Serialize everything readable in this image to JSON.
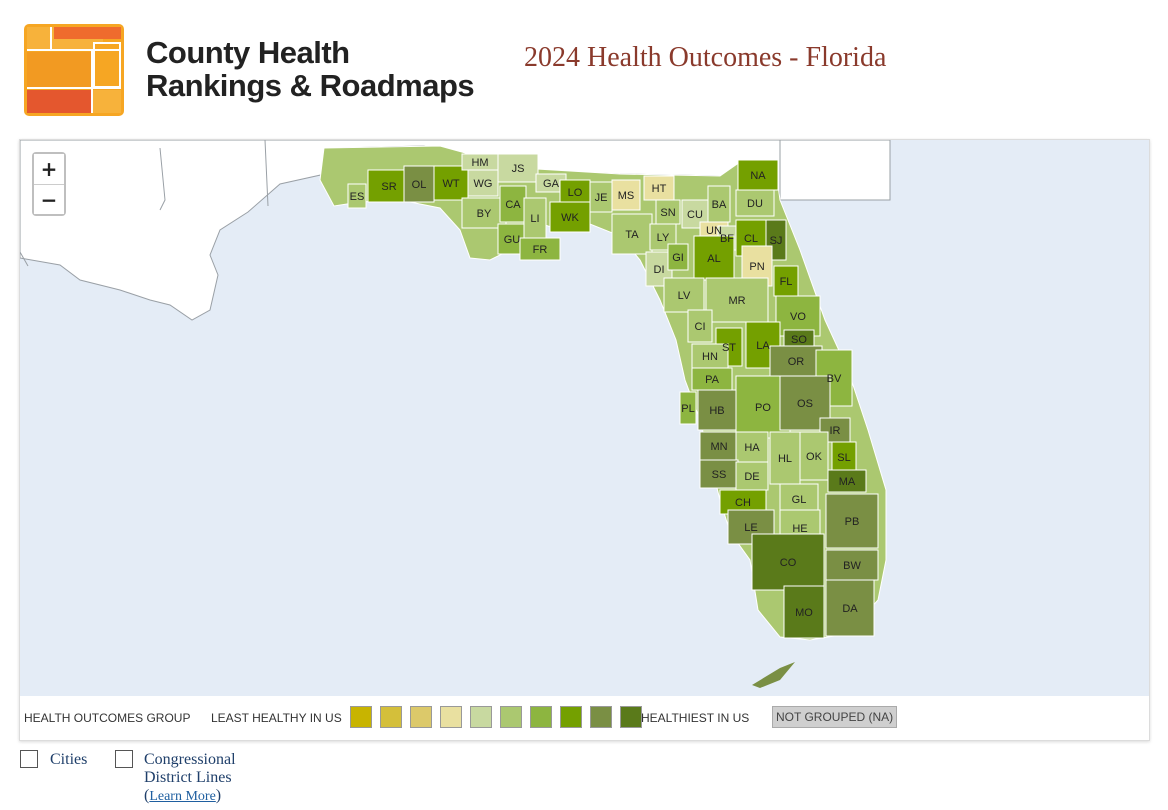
{
  "brand": {
    "line1": "County Health",
    "line2": "Rankings & Roadmaps"
  },
  "page_title": "2024 Health Outcomes - Florida",
  "zoom": {
    "in_label": "+",
    "out_label": "−"
  },
  "legend": {
    "group_label": "HEALTH OUTCOMES GROUP",
    "least_label": "LEAST HEALTHY IN US",
    "healthiest_label": "HEALTHIEST IN US",
    "na_label": "NOT GROUPED (NA)",
    "colors": [
      "#c8b400",
      "#d4bf3a",
      "#dcc96a",
      "#e9e0a0",
      "#c8d9a0",
      "#abc870",
      "#8db540",
      "#74a000",
      "#7a8f44",
      "#5a7a1a"
    ]
  },
  "counties": [
    {
      "code": "ES",
      "group": 5
    },
    {
      "code": "SR",
      "group": 7
    },
    {
      "code": "OL",
      "group": 8
    },
    {
      "code": "WT",
      "group": 7
    },
    {
      "code": "HM",
      "group": 4
    },
    {
      "code": "JS",
      "group": 4
    },
    {
      "code": "WG",
      "group": 4
    },
    {
      "code": "BY",
      "group": 5
    },
    {
      "code": "CA",
      "group": 6
    },
    {
      "code": "GU",
      "group": 6
    },
    {
      "code": "FR",
      "group": 6
    },
    {
      "code": "LI",
      "group": 5
    },
    {
      "code": "GA",
      "group": 4
    },
    {
      "code": "LO",
      "group": 7
    },
    {
      "code": "WK",
      "group": 7
    },
    {
      "code": "JE",
      "group": 5
    },
    {
      "code": "MS",
      "group": 3
    },
    {
      "code": "HT",
      "group": 3
    },
    {
      "code": "TA",
      "group": 5
    },
    {
      "code": "SN",
      "group": 5
    },
    {
      "code": "LY",
      "group": 5
    },
    {
      "code": "CU",
      "group": 4
    },
    {
      "code": "BA",
      "group": 5
    },
    {
      "code": "NA",
      "group": 7
    },
    {
      "code": "DU",
      "group": 5
    },
    {
      "code": "UN",
      "group": 3
    },
    {
      "code": "BF",
      "group": 4
    },
    {
      "code": "CL",
      "group": 7
    },
    {
      "code": "SJ",
      "group": 9
    },
    {
      "code": "DI",
      "group": 4
    },
    {
      "code": "GI",
      "group": 6
    },
    {
      "code": "AL",
      "group": 7
    },
    {
      "code": "PN",
      "group": 3
    },
    {
      "code": "FL",
      "group": 7
    },
    {
      "code": "LV",
      "group": 5
    },
    {
      "code": "MR",
      "group": 5
    },
    {
      "code": "VO",
      "group": 6
    },
    {
      "code": "CI",
      "group": 5
    },
    {
      "code": "LA",
      "group": 7
    },
    {
      "code": "ST",
      "group": 7
    },
    {
      "code": "SO",
      "group": 9
    },
    {
      "code": "HN",
      "group": 5
    },
    {
      "code": "OR",
      "group": 8
    },
    {
      "code": "PA",
      "group": 6
    },
    {
      "code": "BV",
      "group": 6
    },
    {
      "code": "PL",
      "group": 6
    },
    {
      "code": "HB",
      "group": 8
    },
    {
      "code": "PO",
      "group": 6
    },
    {
      "code": "OS",
      "group": 8
    },
    {
      "code": "IR",
      "group": 8
    },
    {
      "code": "MN",
      "group": 8
    },
    {
      "code": "HA",
      "group": 5
    },
    {
      "code": "HL",
      "group": 5
    },
    {
      "code": "OK",
      "group": 5
    },
    {
      "code": "SL",
      "group": 7
    },
    {
      "code": "SS",
      "group": 8
    },
    {
      "code": "DE",
      "group": 5
    },
    {
      "code": "MA",
      "group": 9
    },
    {
      "code": "CH",
      "group": 7
    },
    {
      "code": "GL",
      "group": 5
    },
    {
      "code": "LE",
      "group": 8
    },
    {
      "code": "HE",
      "group": 5
    },
    {
      "code": "PB",
      "group": 8
    },
    {
      "code": "CO",
      "group": 9
    },
    {
      "code": "BW",
      "group": 8
    },
    {
      "code": "MO",
      "group": 9
    },
    {
      "code": "DA",
      "group": 8
    }
  ],
  "options": {
    "cities_label": "Cities",
    "district_label": "Congressional District Lines",
    "learn_open": "(",
    "learn_label": "Learn More",
    "learn_close": ")"
  }
}
